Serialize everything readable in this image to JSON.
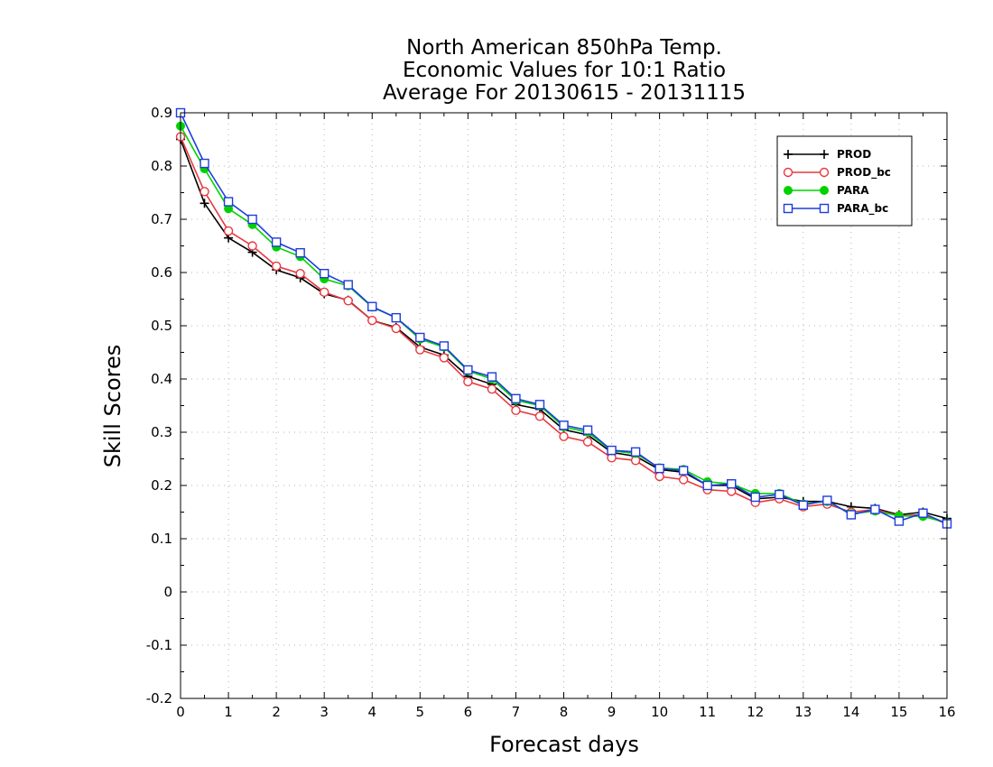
{
  "chart_data": {
    "type": "line",
    "title": [
      "North American 850hPa Temp.",
      "Economic Values for 10:1 Ratio",
      "Average For 20130615 - 20131115"
    ],
    "xlabel": "Forecast days",
    "ylabel": "Skill Scores",
    "xlim": [
      0,
      16
    ],
    "ylim": [
      -0.2,
      0.9
    ],
    "xticks": [
      "0",
      "1",
      "2",
      "3",
      "4",
      "5",
      "6",
      "7",
      "8",
      "9",
      "10",
      "11",
      "12",
      "13",
      "14",
      "15",
      "16"
    ],
    "yticks": [
      "0.9",
      "0.8",
      "0.7",
      "0.6",
      "0.5",
      "0.4",
      "0.3",
      "0.2",
      "0.1",
      "0",
      "-0.1",
      "-0.2"
    ],
    "grid": true,
    "legend_position": "top-right",
    "x": [
      0,
      0.5,
      1,
      1.5,
      2,
      2.5,
      3,
      3.5,
      4,
      4.5,
      5,
      5.5,
      6,
      6.5,
      7,
      7.5,
      8,
      8.5,
      9,
      9.5,
      10,
      10.5,
      11,
      11.5,
      12,
      12.5,
      13,
      13.5,
      14,
      14.5,
      15,
      15.5,
      16
    ],
    "series": [
      {
        "name": "PROD",
        "color": "#000000",
        "marker": "plus",
        "values": [
          0.85,
          0.73,
          0.665,
          0.638,
          0.605,
          0.59,
          0.56,
          0.548,
          0.51,
          0.497,
          0.46,
          0.445,
          0.405,
          0.39,
          0.352,
          0.343,
          0.305,
          0.295,
          0.262,
          0.255,
          0.23,
          0.225,
          0.2,
          0.2,
          0.175,
          0.178,
          0.17,
          0.17,
          0.16,
          0.157,
          0.145,
          0.15,
          0.138
        ]
      },
      {
        "name": "PROD_bc",
        "color": "#e8383d",
        "marker": "circle-open",
        "values": [
          0.855,
          0.752,
          0.678,
          0.65,
          0.612,
          0.598,
          0.563,
          0.547,
          0.51,
          0.495,
          0.455,
          0.44,
          0.395,
          0.381,
          0.341,
          0.33,
          0.292,
          0.282,
          0.252,
          0.247,
          0.217,
          0.211,
          0.192,
          0.189,
          0.168,
          0.175,
          0.16,
          0.165,
          0.15,
          0.155,
          0.143,
          0.145,
          0.128
        ]
      },
      {
        "name": "PARA",
        "color": "#00d200",
        "marker": "circle-filled",
        "values": [
          0.875,
          0.795,
          0.72,
          0.69,
          0.648,
          0.63,
          0.588,
          0.575,
          0.535,
          0.515,
          0.475,
          0.46,
          0.415,
          0.4,
          0.36,
          0.35,
          0.31,
          0.3,
          0.265,
          0.26,
          0.233,
          0.23,
          0.207,
          0.203,
          0.185,
          0.185,
          0.165,
          0.17,
          0.147,
          0.152,
          0.143,
          0.142,
          0.13
        ]
      },
      {
        "name": "PARA_bc",
        "color": "#1e3cdc",
        "marker": "square-open",
        "values": [
          0.9,
          0.805,
          0.733,
          0.7,
          0.657,
          0.637,
          0.598,
          0.577,
          0.536,
          0.515,
          0.478,
          0.462,
          0.417,
          0.404,
          0.363,
          0.352,
          0.313,
          0.304,
          0.266,
          0.263,
          0.232,
          0.228,
          0.2,
          0.203,
          0.178,
          0.183,
          0.163,
          0.172,
          0.145,
          0.155,
          0.133,
          0.148,
          0.128
        ]
      }
    ]
  }
}
